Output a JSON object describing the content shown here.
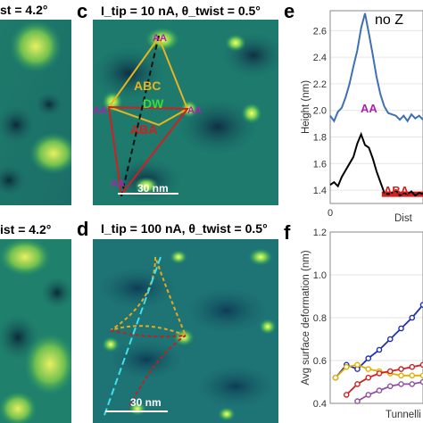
{
  "panels": {
    "a_caption_fragment": "st = 4.2°",
    "b_caption_fragment": "ist = 4.2°",
    "c": {
      "letter": "c",
      "caption": "I_tip = 10 nA, θ_twist = 0.5°",
      "scale": "30 nm",
      "labels": {
        "aa_top": "AA",
        "aa_left": "AA",
        "aa_right": "AA",
        "aa_bottom": "AA",
        "abc": "ABC",
        "dw": "DW",
        "aba": "ABA"
      }
    },
    "d": {
      "letter": "d",
      "caption": "I_tip = 100 nA, θ_twist = 0.5°",
      "scale": "30 nm"
    },
    "e": {
      "letter": "e",
      "annotation": "no Z",
      "aa_label": "AA",
      "aba_label": "ABA"
    },
    "f": {
      "letter": "f"
    }
  },
  "chart_data": [
    {
      "type": "line",
      "ylabel": "Height (nm)",
      "xlabel": "Dist",
      "ylim": [
        1.3,
        2.75
      ],
      "yticks": [
        1.4,
        1.6,
        1.8,
        2.0,
        2.2,
        2.4,
        2.6
      ],
      "xticks": [
        0
      ],
      "series": [
        {
          "color": "#3f6fb5",
          "x": [
            0,
            0.3,
            0.6,
            0.9,
            1.2,
            1.5,
            1.8,
            2.1,
            2.4,
            2.7,
            3.0,
            3.3,
            3.6,
            3.9,
            4.2,
            4.5,
            4.8,
            5.1,
            5.4,
            5.7,
            6.0,
            6.3,
            6.6,
            6.9,
            7.2
          ],
          "y": [
            1.96,
            1.92,
            1.99,
            2.02,
            2.1,
            2.2,
            2.33,
            2.45,
            2.62,
            2.73,
            2.58,
            2.42,
            2.25,
            2.12,
            2.03,
            1.98,
            1.97,
            1.96,
            1.93,
            1.96,
            1.92,
            1.97,
            1.94,
            1.96,
            1.93
          ]
        },
        {
          "color": "#000000",
          "x": [
            0,
            0.3,
            0.6,
            0.9,
            1.2,
            1.5,
            1.8,
            2.1,
            2.4,
            2.7,
            3.0,
            3.3,
            3.6,
            3.9,
            4.2,
            4.5,
            4.8,
            5.1,
            5.4,
            5.7,
            6.0,
            6.3,
            6.6,
            6.9,
            7.2
          ],
          "y": [
            1.44,
            1.46,
            1.43,
            1.5,
            1.55,
            1.6,
            1.65,
            1.75,
            1.82,
            1.74,
            1.72,
            1.64,
            1.54,
            1.46,
            1.38,
            1.37,
            1.38,
            1.4,
            1.36,
            1.38,
            1.37,
            1.39,
            1.36,
            1.38,
            1.37
          ]
        }
      ],
      "highlight": {
        "color": "#d42020",
        "x": [
          4.0,
          7.2
        ],
        "y": [
          1.37,
          1.37
        ]
      }
    },
    {
      "type": "line",
      "ylabel": "Avg surface deformation (nm)",
      "xlabel": "Tunnelli",
      "ylim": [
        0.4,
        1.2
      ],
      "yticks": [
        0.4,
        0.6,
        0.8,
        1.0,
        1.2
      ],
      "series": [
        {
          "color": "#2030b0",
          "x": [
            0,
            1,
            2,
            3,
            4,
            5,
            6,
            7,
            8
          ],
          "y": [
            0.52,
            0.58,
            0.56,
            0.61,
            0.65,
            0.7,
            0.75,
            0.8,
            0.86
          ]
        },
        {
          "color": "#e0b000",
          "x": [
            0,
            1,
            2,
            3,
            4,
            5,
            6,
            7,
            8
          ],
          "y": [
            0.52,
            0.57,
            0.58,
            0.56,
            0.55,
            0.54,
            0.53,
            0.53,
            0.53
          ]
        },
        {
          "color": "#d02020",
          "x": [
            1,
            2,
            3,
            4,
            5,
            6,
            7,
            8
          ],
          "y": [
            0.44,
            0.49,
            0.52,
            0.54,
            0.55,
            0.56,
            0.57,
            0.58
          ]
        },
        {
          "color": "#9050a0",
          "x": [
            2,
            3,
            4,
            5,
            6,
            7,
            8
          ],
          "y": [
            0.41,
            0.44,
            0.46,
            0.48,
            0.49,
            0.49,
            0.5
          ]
        }
      ]
    }
  ]
}
